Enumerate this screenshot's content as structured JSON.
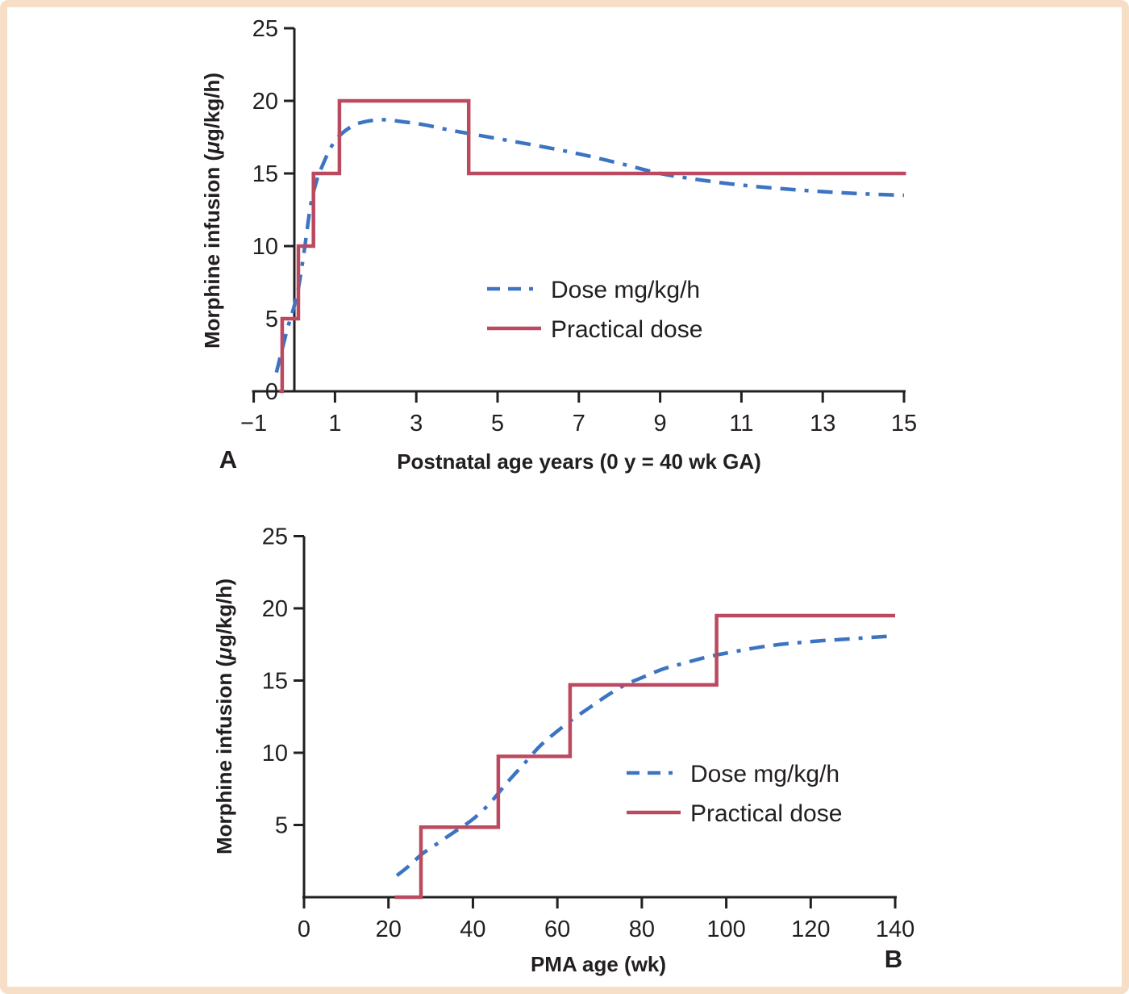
{
  "figure": {
    "border_color": "#f7dec6",
    "background_color": "#ffffff"
  },
  "colors": {
    "dose_line": "#3c74c1",
    "practical_line": "#bb4a61",
    "axis": "#231f20",
    "text": "#231f20"
  },
  "chart_data": [
    {
      "id": "A",
      "type": "line",
      "panel_label": "A",
      "xlabel": "Postnatal age years (0 y = 40 wk GA)",
      "ylabel": "Morphine infusion (μg/kg/h)",
      "xlim": [
        -1,
        15
      ],
      "ylim": [
        0,
        25
      ],
      "xticks": [
        -1,
        1,
        3,
        5,
        7,
        9,
        11,
        13,
        15
      ],
      "xtick_labels": [
        "−1",
        "1",
        "3",
        "5",
        "7",
        "9",
        "11",
        "13",
        "15"
      ],
      "yticks": [
        0,
        5,
        10,
        15,
        20,
        25
      ],
      "ytick_labels": [
        "0",
        "5",
        "10",
        "15",
        "20",
        "25"
      ],
      "legend_position": "inside-right",
      "grid": false,
      "legend": [
        {
          "label": "Dose mg/kg/h",
          "style": "dashed",
          "color_key": "dose_line"
        },
        {
          "label": "Practical dose",
          "style": "solid",
          "color_key": "practical_line"
        }
      ],
      "series": [
        {
          "name": "Dose mg/kg/h",
          "style": "dashed",
          "smooth": true,
          "color_key": "dose_line",
          "points": [
            [
              -0.44,
              1.3
            ],
            [
              -0.3,
              2.9
            ],
            [
              -0.15,
              4.5
            ],
            [
              0,
              5.9
            ],
            [
              0.12,
              7.4
            ],
            [
              0.26,
              10.0
            ],
            [
              0.4,
              12.8
            ],
            [
              0.55,
              14.5
            ],
            [
              0.7,
              15.6
            ],
            [
              0.9,
              16.8
            ],
            [
              1.11,
              17.6
            ],
            [
              1.45,
              18.3
            ],
            [
              1.8,
              18.6
            ],
            [
              2.2,
              18.7
            ],
            [
              2.7,
              18.55
            ],
            [
              3.2,
              18.35
            ],
            [
              3.8,
              18.0
            ],
            [
              4.3,
              17.75
            ],
            [
              5,
              17.4
            ],
            [
              6,
              16.9
            ],
            [
              7,
              16.35
            ],
            [
              8,
              15.7
            ],
            [
              9,
              15.0
            ],
            [
              10,
              14.55
            ],
            [
              11,
              14.2
            ],
            [
              12,
              13.95
            ],
            [
              13,
              13.75
            ],
            [
              14,
              13.6
            ],
            [
              15,
              13.5
            ]
          ]
        },
        {
          "name": "Practical dose",
          "style": "solid",
          "smooth": false,
          "color_key": "practical_line",
          "points": [
            [
              -0.37,
              0
            ],
            [
              -0.3,
              0
            ],
            [
              -0.3,
              5
            ],
            [
              0.1,
              5
            ],
            [
              0.1,
              10
            ],
            [
              0.47,
              10
            ],
            [
              0.47,
              15
            ],
            [
              1.11,
              15
            ],
            [
              1.11,
              20
            ],
            [
              4.29,
              20
            ],
            [
              4.29,
              15
            ],
            [
              15.05,
              15
            ]
          ]
        }
      ]
    },
    {
      "id": "B",
      "type": "line",
      "panel_label": "B",
      "xlabel": "PMA age (wk)",
      "ylabel": "Morphine infusion (μg/kg/h)",
      "xlim": [
        0,
        140
      ],
      "ylim": [
        0,
        25
      ],
      "xticks": [
        0,
        20,
        40,
        60,
        80,
        100,
        120,
        140
      ],
      "xtick_labels": [
        "0",
        "20",
        "40",
        "60",
        "80",
        "100",
        "120",
        "140"
      ],
      "yticks": [
        5,
        10,
        15,
        20,
        25
      ],
      "ytick_labels": [
        "5",
        "10",
        "15",
        "20",
        "25"
      ],
      "legend_position": "inside-right",
      "grid": false,
      "legend": [
        {
          "label": "Dose mg/kg/h",
          "style": "dashed",
          "color_key": "dose_line"
        },
        {
          "label": "Practical dose",
          "style": "solid",
          "color_key": "practical_line"
        }
      ],
      "series": [
        {
          "name": "Dose mg/kg/h",
          "style": "dashed",
          "smooth": true,
          "color_key": "dose_line",
          "points": [
            [
              22,
              1.5
            ],
            [
              25,
              2.2
            ],
            [
              28,
              3.0
            ],
            [
              32,
              3.8
            ],
            [
              36,
              4.6
            ],
            [
              40,
              5.4
            ],
            [
              44,
              6.5
            ],
            [
              48,
              7.9
            ],
            [
              52,
              9.2
            ],
            [
              56,
              10.5
            ],
            [
              60,
              11.5
            ],
            [
              64,
              12.4
            ],
            [
              68,
              13.2
            ],
            [
              72,
              14.0
            ],
            [
              76,
              14.7
            ],
            [
              80,
              15.2
            ],
            [
              85,
              15.8
            ],
            [
              90,
              16.2
            ],
            [
              95,
              16.6
            ],
            [
              100,
              16.9
            ],
            [
              110,
              17.4
            ],
            [
              120,
              17.7
            ],
            [
              130,
              17.9
            ],
            [
              140,
              18.1
            ]
          ]
        },
        {
          "name": "Practical dose",
          "style": "solid",
          "smooth": false,
          "color_key": "practical_line",
          "points": [
            [
              21.5,
              0
            ],
            [
              27.7,
              0
            ],
            [
              27.7,
              4.85
            ],
            [
              46,
              4.85
            ],
            [
              46,
              9.75
            ],
            [
              63,
              9.75
            ],
            [
              63,
              14.7
            ],
            [
              97.7,
              14.7
            ],
            [
              97.7,
              19.5
            ],
            [
              140,
              19.5
            ]
          ]
        }
      ]
    }
  ]
}
